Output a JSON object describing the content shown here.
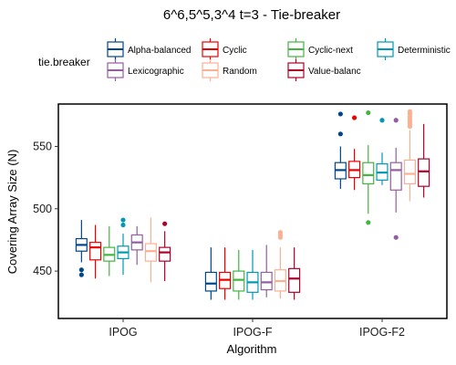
{
  "chart_data": {
    "type": "boxplot",
    "title": "6^6,5^5,3^4 t=3 - Tie-breaker",
    "xlabel": "Algorithm",
    "ylabel": "Covering Array Size (N)",
    "ylim": [
      412,
      584
    ],
    "yticks": [
      450,
      500,
      550
    ],
    "grid": false,
    "legend": {
      "title": "tie.breaker",
      "placement": "top",
      "entries": [
        {
          "name": "Alpha-balanced",
          "color": "#00468b"
        },
        {
          "name": "Cyclic",
          "color": "#ed0000"
        },
        {
          "name": "Cyclic-next",
          "color": "#42b540"
        },
        {
          "name": "Deterministic",
          "color": "#0099b4"
        },
        {
          "name": "Lexicographic",
          "color": "#925e9f"
        },
        {
          "name": "Random",
          "color": "#fdaf91"
        },
        {
          "name": "Value-balanc",
          "color": "#ad002a"
        }
      ]
    },
    "categories": [
      "IPOG",
      "IPOG-F",
      "IPOG-F2"
    ],
    "series": [
      {
        "name": "Alpha-balanced",
        "color": "#00468b",
        "boxes": [
          {
            "whisker_low": 457,
            "q1": 466,
            "median": 471,
            "q3": 476,
            "whisker_high": 491,
            "outliers": [
              451,
              447
            ]
          },
          {
            "whisker_low": 427,
            "q1": 434,
            "median": 440,
            "q3": 449,
            "whisker_high": 469,
            "outliers": []
          },
          {
            "whisker_low": 516,
            "q1": 524,
            "median": 531,
            "q3": 537,
            "whisker_high": 550,
            "outliers": [
              576,
              560
            ]
          }
        ]
      },
      {
        "name": "Cyclic",
        "color": "#ed0000",
        "boxes": [
          {
            "whisker_low": 444,
            "q1": 459,
            "median": 469,
            "q3": 473,
            "whisker_high": 487,
            "outliers": []
          },
          {
            "whisker_low": 427,
            "q1": 436,
            "median": 443,
            "q3": 449,
            "whisker_high": 469,
            "outliers": []
          },
          {
            "whisker_low": 515,
            "q1": 525,
            "median": 531,
            "q3": 538,
            "whisker_high": 548,
            "outliers": [
              573
            ]
          }
        ]
      },
      {
        "name": "Cyclic-next",
        "color": "#42b540",
        "boxes": [
          {
            "whisker_low": 446,
            "q1": 458,
            "median": 463,
            "q3": 469,
            "whisker_high": 486,
            "outliers": []
          },
          {
            "whisker_low": 427,
            "q1": 434,
            "median": 443,
            "q3": 450,
            "whisker_high": 467,
            "outliers": []
          },
          {
            "whisker_low": 496,
            "q1": 520,
            "median": 527,
            "q3": 537,
            "whisker_high": 551,
            "outliers": [
              577,
              489
            ]
          }
        ]
      },
      {
        "name": "Deterministic",
        "color": "#0099b4",
        "boxes": [
          {
            "whisker_low": 447,
            "q1": 460,
            "median": 465,
            "q3": 470,
            "whisker_high": 480,
            "outliers": [
              491,
              487
            ]
          },
          {
            "whisker_low": 427,
            "q1": 433,
            "median": 441,
            "q3": 449,
            "whisker_high": 467,
            "outliers": []
          },
          {
            "whisker_low": 519,
            "q1": 523,
            "median": 529,
            "q3": 536,
            "whisker_high": 545,
            "outliers": [
              571
            ]
          }
        ]
      },
      {
        "name": "Lexicographic",
        "color": "#925e9f",
        "boxes": [
          {
            "whisker_low": 455,
            "q1": 467,
            "median": 473,
            "q3": 479,
            "whisker_high": 486,
            "outliers": []
          },
          {
            "whisker_low": 429,
            "q1": 435,
            "median": 441,
            "q3": 449,
            "whisker_high": 471,
            "outliers": []
          },
          {
            "whisker_low": 497,
            "q1": 515,
            "median": 531,
            "q3": 537,
            "whisker_high": 549,
            "outliers": [
              571,
              477
            ]
          }
        ]
      },
      {
        "name": "Random",
        "color": "#fdaf91",
        "boxes": [
          {
            "whisker_low": 441,
            "q1": 458,
            "median": 466,
            "q3": 472,
            "whisker_high": 493,
            "outliers": []
          },
          {
            "whisker_low": 428,
            "q1": 434,
            "median": 442,
            "q3": 451,
            "whisker_high": 469,
            "outliers": [
              481,
              479,
              477
            ]
          },
          {
            "whisker_low": 506,
            "q1": 520,
            "median": 528,
            "q3": 539,
            "whisker_high": 563,
            "outliers": [
              578,
              576,
              574,
              572,
              570,
              568,
              566
            ]
          }
        ]
      },
      {
        "name": "Value-balanc",
        "color": "#ad002a",
        "boxes": [
          {
            "whisker_low": 442,
            "q1": 458,
            "median": 465,
            "q3": 469,
            "whisker_high": 482,
            "outliers": [
              488
            ]
          },
          {
            "whisker_low": 427,
            "q1": 433,
            "median": 444,
            "q3": 452,
            "whisker_high": 469,
            "outliers": []
          },
          {
            "whisker_low": 509,
            "q1": 518,
            "median": 530,
            "q3": 540,
            "whisker_high": 568,
            "outliers": []
          }
        ]
      }
    ]
  }
}
